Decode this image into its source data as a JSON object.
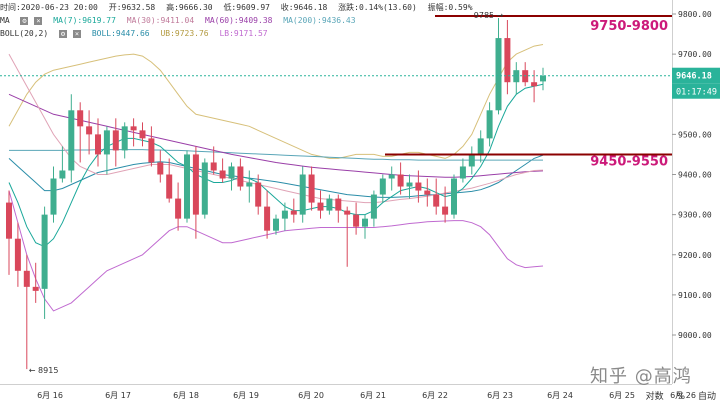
{
  "info_bar": {
    "time": "时间:2020-06-23 20:00",
    "open": "开:9632.58",
    "high": "高:9666.30",
    "low": "低:9609.97",
    "close": "收:9646.18",
    "change": "涨跌:0.14%(13.60)",
    "amplitude": "振幅:0.59%"
  },
  "legend_ma": {
    "label": "MA",
    "ma7": "MA(7):9619.77",
    "ma30": "MA(30):9411.04",
    "ma60": "MA(60):9409.38",
    "ma200": "MA(200):9436.43"
  },
  "legend_boll": {
    "label": "BOLL(20,2)",
    "mid": "BOLL:9447.66",
    "ub": "UB:9723.76",
    "lb": "LB:9171.57"
  },
  "colors": {
    "up": "#3fae8f",
    "down": "#d9475b",
    "ma7": "#1aa89a",
    "ma30": "#e0a3b6",
    "ma60": "#9a3fa8",
    "ma200": "#5aa6b8",
    "boll_mid": "#2a8da8",
    "boll_ub": "#d7c07a",
    "boll_lb": "#c06ad0",
    "zone_label": "#cc1a7a",
    "zone_line": "#8b0000",
    "price_tag": "#2ab39a"
  },
  "toolbar": {
    "log": "对数",
    "percent": "%",
    "auto": "自动"
  },
  "watermark": "知乎 @高鸿",
  "chart_data": {
    "type": "candlestick",
    "ylim": [
      8850,
      9850
    ],
    "y_ticks": [
      "9800.00",
      "9700.00",
      "9600.00",
      "9500.00",
      "9400.00",
      "9300.00",
      "9200.00",
      "9100.00",
      "9000.00"
    ],
    "x_tick_labels": [
      "6月 16",
      "6月 17",
      "6月 18",
      "6月 19",
      "6月 20",
      "6月 21",
      "6月 22",
      "6月 23",
      "6月 24",
      "6月 25",
      "6月 26"
    ],
    "current_price": "9646.18",
    "countdown": "01:17:49",
    "high_annotation": "9785",
    "low_annotation": "← 8915",
    "zones": [
      {
        "label": "9750-9800",
        "price": 9795
      },
      {
        "label": "9450-9550",
        "price": 9450
      }
    ],
    "candles": [
      {
        "o": 9330,
        "h": 9360,
        "l": 9150,
        "c": 9240
      },
      {
        "o": 9240,
        "h": 9280,
        "l": 9120,
        "c": 9160
      },
      {
        "o": 9160,
        "h": 9200,
        "l": 8915,
        "c": 9120
      },
      {
        "o": 9120,
        "h": 9180,
        "l": 9080,
        "c": 9110
      },
      {
        "o": 9115,
        "h": 9320,
        "l": 9040,
        "c": 9300
      },
      {
        "o": 9300,
        "h": 9420,
        "l": 9280,
        "c": 9390
      },
      {
        "o": 9390,
        "h": 9470,
        "l": 9380,
        "c": 9410
      },
      {
        "o": 9410,
        "h": 9600,
        "l": 9380,
        "c": 9560
      },
      {
        "o": 9560,
        "h": 9580,
        "l": 9430,
        "c": 9520
      },
      {
        "o": 9520,
        "h": 9560,
        "l": 9450,
        "c": 9500
      },
      {
        "o": 9500,
        "h": 9540,
        "l": 9420,
        "c": 9450
      },
      {
        "o": 9450,
        "h": 9520,
        "l": 9400,
        "c": 9510
      },
      {
        "o": 9510,
        "h": 9540,
        "l": 9420,
        "c": 9460
      },
      {
        "o": 9460,
        "h": 9530,
        "l": 9440,
        "c": 9520
      },
      {
        "o": 9520,
        "h": 9540,
        "l": 9470,
        "c": 9510
      },
      {
        "o": 9510,
        "h": 9530,
        "l": 9470,
        "c": 9490
      },
      {
        "o": 9490,
        "h": 9520,
        "l": 9420,
        "c": 9430
      },
      {
        "o": 9430,
        "h": 9460,
        "l": 9380,
        "c": 9400
      },
      {
        "o": 9400,
        "h": 9440,
        "l": 9330,
        "c": 9340
      },
      {
        "o": 9340,
        "h": 9380,
        "l": 9260,
        "c": 9290
      },
      {
        "o": 9290,
        "h": 9460,
        "l": 9280,
        "c": 9450
      },
      {
        "o": 9450,
        "h": 9470,
        "l": 9240,
        "c": 9300
      },
      {
        "o": 9300,
        "h": 9440,
        "l": 9290,
        "c": 9430
      },
      {
        "o": 9430,
        "h": 9470,
        "l": 9400,
        "c": 9410
      },
      {
        "o": 9410,
        "h": 9440,
        "l": 9380,
        "c": 9390
      },
      {
        "o": 9390,
        "h": 9430,
        "l": 9360,
        "c": 9420
      },
      {
        "o": 9420,
        "h": 9440,
        "l": 9360,
        "c": 9370
      },
      {
        "o": 9370,
        "h": 9410,
        "l": 9330,
        "c": 9380
      },
      {
        "o": 9380,
        "h": 9400,
        "l": 9300,
        "c": 9320
      },
      {
        "o": 9320,
        "h": 9360,
        "l": 9240,
        "c": 9260
      },
      {
        "o": 9260,
        "h": 9300,
        "l": 9250,
        "c": 9290
      },
      {
        "o": 9290,
        "h": 9330,
        "l": 9260,
        "c": 9310
      },
      {
        "o": 9310,
        "h": 9340,
        "l": 9280,
        "c": 9300
      },
      {
        "o": 9300,
        "h": 9420,
        "l": 9280,
        "c": 9400
      },
      {
        "o": 9400,
        "h": 9420,
        "l": 9310,
        "c": 9330
      },
      {
        "o": 9330,
        "h": 9360,
        "l": 9290,
        "c": 9310
      },
      {
        "o": 9310,
        "h": 9350,
        "l": 9300,
        "c": 9340
      },
      {
        "o": 9340,
        "h": 9350,
        "l": 9280,
        "c": 9310
      },
      {
        "o": 9310,
        "h": 9320,
        "l": 9170,
        "c": 9300
      },
      {
        "o": 9300,
        "h": 9330,
        "l": 9250,
        "c": 9270
      },
      {
        "o": 9270,
        "h": 9300,
        "l": 9240,
        "c": 9290
      },
      {
        "o": 9290,
        "h": 9360,
        "l": 9270,
        "c": 9350
      },
      {
        "o": 9350,
        "h": 9400,
        "l": 9330,
        "c": 9390
      },
      {
        "o": 9390,
        "h": 9420,
        "l": 9360,
        "c": 9400
      },
      {
        "o": 9400,
        "h": 9430,
        "l": 9350,
        "c": 9370
      },
      {
        "o": 9370,
        "h": 9400,
        "l": 9340,
        "c": 9380
      },
      {
        "o": 9380,
        "h": 9410,
        "l": 9330,
        "c": 9360
      },
      {
        "o": 9360,
        "h": 9390,
        "l": 9320,
        "c": 9350
      },
      {
        "o": 9350,
        "h": 9390,
        "l": 9300,
        "c": 9320
      },
      {
        "o": 9320,
        "h": 9370,
        "l": 9280,
        "c": 9300
      },
      {
        "o": 9300,
        "h": 9400,
        "l": 9290,
        "c": 9390
      },
      {
        "o": 9390,
        "h": 9440,
        "l": 9380,
        "c": 9420
      },
      {
        "o": 9420,
        "h": 9470,
        "l": 9400,
        "c": 9450
      },
      {
        "o": 9450,
        "h": 9510,
        "l": 9430,
        "c": 9490
      },
      {
        "o": 9490,
        "h": 9580,
        "l": 9470,
        "c": 9560
      },
      {
        "o": 9560,
        "h": 9790,
        "l": 9550,
        "c": 9740
      },
      {
        "o": 9740,
        "h": 9785,
        "l": 9600,
        "c": 9630
      },
      {
        "o": 9630,
        "h": 9680,
        "l": 9600,
        "c": 9660
      },
      {
        "o": 9660,
        "h": 9680,
        "l": 9620,
        "c": 9630
      },
      {
        "o": 9630,
        "h": 9660,
        "l": 9580,
        "c": 9620
      },
      {
        "o": 9632,
        "h": 9666,
        "l": 9610,
        "c": 9646
      }
    ],
    "ma7": [
      9380,
      9330,
      9270,
      9230,
      9220,
      9240,
      9280,
      9330,
      9380,
      9420,
      9450,
      9470,
      9480,
      9490,
      9490,
      9485,
      9480,
      9470,
      9450,
      9430,
      9420,
      9400,
      9390,
      9380,
      9380,
      9385,
      9395,
      9390,
      9380,
      9360,
      9340,
      9320,
      9310,
      9310,
      9315,
      9320,
      9320,
      9315,
      9305,
      9300,
      9300,
      9310,
      9330,
      9345,
      9360,
      9365,
      9370,
      9365,
      9355,
      9345,
      9350,
      9365,
      9390,
      9420,
      9460,
      9520,
      9570,
      9600,
      9615,
      9620,
      9625
    ],
    "ma30": [
      9700,
      9660,
      9620,
      9580,
      9540,
      9500,
      9470,
      9440,
      9420,
      9410,
      9400,
      9400,
      9405,
      9410,
      9415,
      9420,
      9425,
      9425,
      9425,
      9420,
      9415,
      9410,
      9405,
      9400,
      9395,
      9390,
      9385,
      9380,
      9375,
      9370,
      9365,
      9360,
      9355,
      9350,
      9345,
      9340,
      9338,
      9336,
      9334,
      9332,
      9330,
      9330,
      9332,
      9335,
      9338,
      9340,
      9343,
      9346,
      9350,
      9354,
      9358,
      9362,
      9366,
      9372,
      9378,
      9385,
      9393,
      9400,
      9405,
      9410,
      9411
    ],
    "ma60": [
      9600,
      9590,
      9580,
      9570,
      9560,
      9550,
      9545,
      9540,
      9535,
      9530,
      9525,
      9520,
      9515,
      9510,
      9505,
      9500,
      9495,
      9490,
      9485,
      9480,
      9475,
      9470,
      9465,
      9460,
      9455,
      9450,
      9446,
      9442,
      9438,
      9434,
      9430,
      9427,
      9424,
      9421,
      9418,
      9416,
      9414,
      9412,
      9410,
      9408,
      9406,
      9404,
      9402,
      9400,
      9398,
      9397,
      9396,
      9395,
      9394,
      9393,
      9393,
      9394,
      9395,
      9397,
      9399,
      9401,
      9403,
      9405,
      9407,
      9408,
      9409
    ],
    "ma200": [
      9460,
      9460,
      9460,
      9460,
      9460,
      9460,
      9460,
      9461,
      9461,
      9461,
      9462,
      9462,
      9462,
      9462,
      9462,
      9462,
      9461,
      9461,
      9460,
      9460,
      9459,
      9458,
      9457,
      9456,
      9455,
      9454,
      9453,
      9452,
      9451,
      9450,
      9449,
      9448,
      9447,
      9446,
      9445,
      9444,
      9443,
      9442,
      9441,
      9440,
      9439,
      9438,
      9438,
      9437,
      9437,
      9437,
      9436,
      9436,
      9436,
      9436,
      9436,
      9436,
      9436,
      9436,
      9436,
      9436,
      9436,
      9436,
      9436,
      9436,
      9436
    ],
    "boll_mid": [
      9440,
      9420,
      9400,
      9380,
      9360,
      9360,
      9365,
      9375,
      9385,
      9395,
      9405,
      9410,
      9415,
      9420,
      9425,
      9428,
      9430,
      9432,
      9430,
      9425,
      9420,
      9415,
      9410,
      9405,
      9400,
      9397,
      9394,
      9391,
      9388,
      9385,
      9382,
      9378,
      9374,
      9370,
      9366,
      9362,
      9358,
      9354,
      9350,
      9348,
      9346,
      9344,
      9343,
      9343,
      9344,
      9345,
      9347,
      9349,
      9350,
      9352,
      9354,
      9356,
      9358,
      9362,
      9370,
      9380,
      9395,
      9410,
      9425,
      9440,
      9448
    ],
    "boll_ub": [
      9520,
      9560,
      9600,
      9630,
      9650,
      9660,
      9665,
      9670,
      9675,
      9680,
      9685,
      9690,
      9695,
      9698,
      9700,
      9695,
      9680,
      9660,
      9630,
      9600,
      9570,
      9550,
      9545,
      9540,
      9535,
      9530,
      9525,
      9520,
      9510,
      9500,
      9490,
      9480,
      9470,
      9460,
      9450,
      9445,
      9440,
      9440,
      9445,
      9450,
      9450,
      9450,
      9445,
      9445,
      9450,
      9455,
      9455,
      9450,
      9445,
      9440,
      9450,
      9470,
      9500,
      9550,
      9600,
      9640,
      9680,
      9700,
      9710,
      9720,
      9724
    ],
    "boll_lb": [
      9360,
      9280,
      9200,
      9140,
      9090,
      9060,
      9070,
      9080,
      9100,
      9120,
      9140,
      9160,
      9170,
      9180,
      9190,
      9200,
      9220,
      9240,
      9260,
      9270,
      9270,
      9260,
      9250,
      9240,
      9230,
      9230,
      9235,
      9240,
      9245,
      9250,
      9255,
      9260,
      9262,
      9264,
      9266,
      9268,
      9268,
      9268,
      9268,
      9268,
      9268,
      9268,
      9270,
      9272,
      9275,
      9278,
      9280,
      9282,
      9283,
      9284,
      9285,
      9285,
      9280,
      9270,
      9250,
      9220,
      9190,
      9175,
      9168,
      9170,
      9172
    ]
  }
}
